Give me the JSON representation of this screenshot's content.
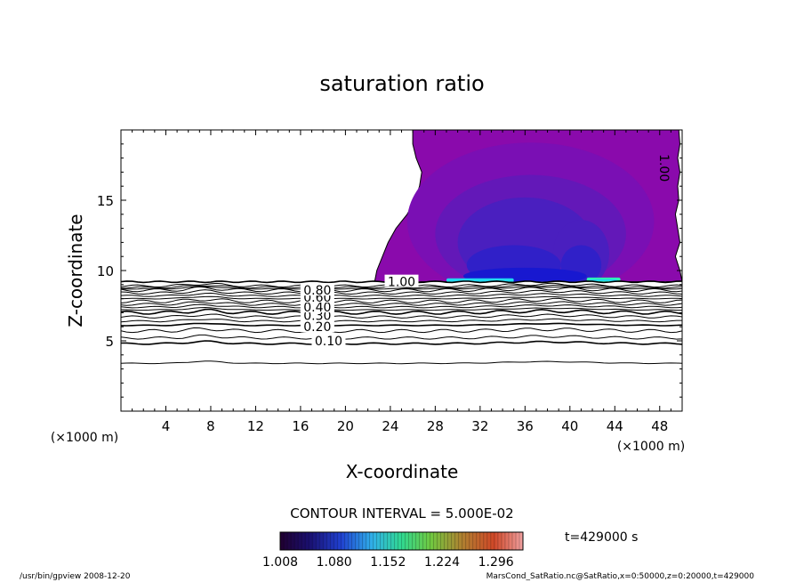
{
  "chart_data": {
    "type": "contour",
    "title": "saturation ratio",
    "xlabel": "X-coordinate",
    "ylabel": "Z-coordinate",
    "x_unit_left": "(×1000 m)",
    "x_unit_right": "(×1000 m)",
    "xlim": [
      0,
      50
    ],
    "ylim": [
      0,
      20
    ],
    "x_ticks": [
      4,
      8,
      12,
      16,
      20,
      24,
      28,
      32,
      36,
      40,
      44,
      48
    ],
    "y_ticks": [
      5,
      10,
      15
    ],
    "contour_labels": [
      {
        "text": "0.10",
        "x": 18.5,
        "z": 5.0
      },
      {
        "text": "0.20",
        "x": 17.5,
        "z": 6.0
      },
      {
        "text": "0.30",
        "x": 17.5,
        "z": 6.8
      },
      {
        "text": "0.40",
        "x": 17.5,
        "z": 7.4
      },
      {
        "text": "0.60",
        "x": 17.5,
        "z": 8.1
      },
      {
        "text": "0.80",
        "x": 17.5,
        "z": 8.6
      },
      {
        "text": "1.00",
        "x": 25.0,
        "z": 9.2
      },
      {
        "text": "1.00",
        "x": 48.0,
        "z": 17.3,
        "rotated": true
      }
    ],
    "contour_line_levels_z": [
      3.4,
      4.8,
      5.2,
      5.7,
      6.1,
      6.4,
      6.7,
      7.0,
      7.2,
      7.4,
      7.6,
      7.8,
      8.0,
      8.2,
      8.4,
      8.6,
      8.7,
      8.8,
      8.9
    ],
    "supersaturated_region_boundary": [
      [
        26,
        20
      ],
      [
        26,
        19
      ],
      [
        26.3,
        18
      ],
      [
        26.8,
        17
      ],
      [
        26.6,
        16
      ],
      [
        26.2,
        15
      ],
      [
        25.5,
        14
      ],
      [
        24.5,
        13
      ],
      [
        23.8,
        12
      ],
      [
        23.3,
        11
      ],
      [
        22.8,
        10
      ],
      [
        22.6,
        9.2
      ],
      [
        50,
        9.2
      ],
      [
        49.8,
        10
      ],
      [
        49.4,
        11
      ],
      [
        49.8,
        12
      ],
      [
        49.6,
        13
      ],
      [
        49.4,
        14
      ],
      [
        49.7,
        15
      ],
      [
        49.6,
        16
      ],
      [
        49.8,
        17
      ],
      [
        49.6,
        18
      ],
      [
        49.8,
        19
      ],
      [
        49.7,
        20
      ]
    ],
    "contour_interval": "CONTOUR INTERVAL = 5.000E-02",
    "colorbar": {
      "range": [
        1.008,
        1.332
      ],
      "tick_labels": [
        "1.008",
        "1.080",
        "1.152",
        "1.224",
        "1.296"
      ]
    },
    "time_label": "t=429000 s",
    "colors": {
      "level1": "#8a0aac",
      "level2": "#7a0fb4",
      "level3": "#6318b8",
      "level4": "#4a1fbf",
      "level5": "#3020c8",
      "level6": "#1818d0",
      "cyan": "#20d8f0",
      "green": "#30f0b0"
    }
  },
  "footer": {
    "left": "/usr/bin/gpview   2008-12-20",
    "right": "MarsCond_SatRatio.nc@SatRatio,x=0:50000,z=0:20000,t=429000"
  }
}
